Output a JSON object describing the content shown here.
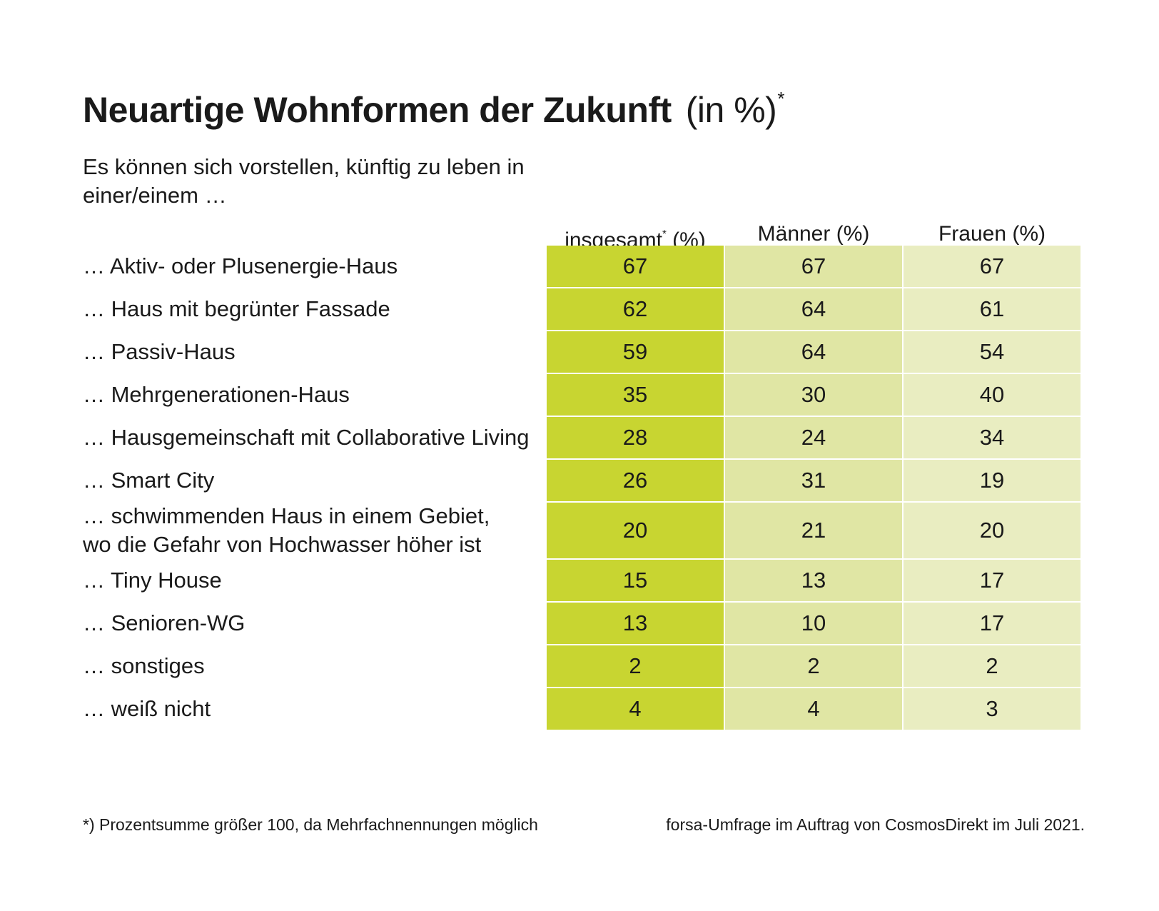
{
  "title": {
    "main": "Neuartige Wohnformen der Zukunft",
    "unit": "(in %)",
    "mark": "*"
  },
  "subtitle": "Es können sich vorstellen, künftig zu leben in einer/einem …",
  "colors": {
    "insgesamt": "#c8d531",
    "maenner": "#e0e6a4",
    "frauen": "#e9edc1"
  },
  "chart_data": {
    "type": "table",
    "columns": [
      {
        "label": "insgesamt",
        "mark": "*",
        "unit": "(%)"
      },
      {
        "label": "Männer",
        "mark": "",
        "unit": "(%)"
      },
      {
        "label": "Frauen",
        "mark": "",
        "unit": "(%)"
      }
    ],
    "rows": [
      {
        "label": "… Aktiv- oder Plusenergie-Haus",
        "values": [
          67,
          67,
          67
        ]
      },
      {
        "label": "… Haus mit begrünter Fassade",
        "values": [
          62,
          64,
          61
        ]
      },
      {
        "label": "… Passiv-Haus",
        "values": [
          59,
          64,
          54
        ]
      },
      {
        "label": "… Mehrgenerationen-Haus",
        "values": [
          35,
          30,
          40
        ]
      },
      {
        "label": "… Hausgemeinschaft mit Collaborative Living",
        "values": [
          28,
          24,
          34
        ]
      },
      {
        "label": "… Smart City",
        "values": [
          26,
          31,
          19
        ]
      },
      {
        "label": "… schwimmenden Haus in einem Gebiet,\nwo die Gefahr von Hochwasser höher ist",
        "values": [
          20,
          21,
          20
        ]
      },
      {
        "label": "… Tiny House",
        "values": [
          15,
          13,
          17
        ]
      },
      {
        "label": "… Senioren-WG",
        "values": [
          13,
          10,
          17
        ]
      },
      {
        "label": "… sonstiges",
        "values": [
          2,
          2,
          2
        ]
      },
      {
        "label": "… weiß nicht",
        "values": [
          4,
          4,
          3
        ]
      }
    ]
  },
  "footnote": "*) Prozentsumme größer 100, da Mehrfachnennungen möglich",
  "source": "forsa-Umfrage im Auftrag von CosmosDirekt im Juli 2021."
}
